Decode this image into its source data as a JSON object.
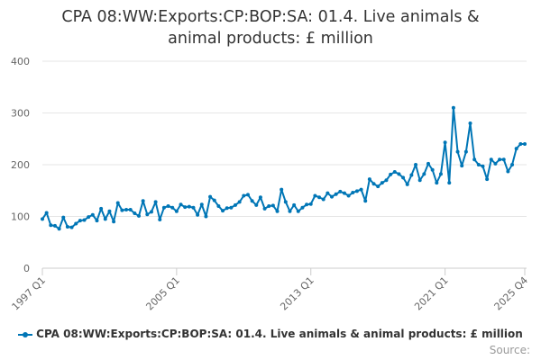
{
  "title_line1": "CPA 08:WW:Exports:CP:BOP:SA: 01.4. Live animals &",
  "title_line2": "animal products: £ million",
  "source_label": "Source:",
  "colors": {
    "series": "#0076b6",
    "grid": "#e6e6e6",
    "axis": "#cccccc",
    "text": "#333333",
    "tick_text": "#666666"
  },
  "chart_data": {
    "type": "line",
    "title": "CPA 08:WW:Exports:CP:BOP:SA: 01.4. Live animals & animal products: £ million",
    "xlabel": "",
    "ylabel": "",
    "ylim": [
      0,
      400
    ],
    "y_ticks": [
      0,
      100,
      200,
      300,
      400
    ],
    "x_ticks": [
      "1997 Q1",
      "2005 Q1",
      "2013 Q1",
      "2021 Q1",
      "2025 Q4"
    ],
    "x_tick_indices": [
      0,
      32,
      64,
      96,
      115
    ],
    "legend": "CPA 08:WW:Exports:CP:BOP:SA: 01.4. Live animals & animal products: £ million",
    "legend_position": "bottom",
    "grid": true,
    "start": "1997 Q1",
    "end": "2025 Q4",
    "series": [
      {
        "name": "CPA 08:WW:Exports:CP:BOP:SA: 01.4. Live animals & animal products: £ million",
        "values": [
          95,
          107,
          83,
          82,
          76,
          98,
          80,
          79,
          86,
          92,
          93,
          99,
          103,
          92,
          115,
          95,
          110,
          90,
          126,
          112,
          113,
          113,
          106,
          101,
          130,
          104,
          109,
          128,
          94,
          117,
          120,
          117,
          110,
          123,
          118,
          119,
          117,
          103,
          123,
          100,
          138,
          131,
          120,
          111,
          116,
          117,
          122,
          128,
          140,
          142,
          130,
          122,
          137,
          115,
          120,
          121,
          110,
          152,
          128,
          110,
          122,
          110,
          117,
          123,
          124,
          140,
          137,
          133,
          145,
          138,
          143,
          148,
          145,
          140,
          146,
          149,
          152,
          130,
          172,
          163,
          158,
          165,
          170,
          181,
          186,
          182,
          175,
          162,
          180,
          200,
          170,
          182,
          202,
          190,
          165,
          182,
          243,
          165,
          310,
          225,
          198,
          225,
          280,
          210,
          200,
          197,
          172,
          210,
          202,
          210,
          210,
          187,
          200,
          231,
          240,
          240
        ]
      }
    ]
  }
}
